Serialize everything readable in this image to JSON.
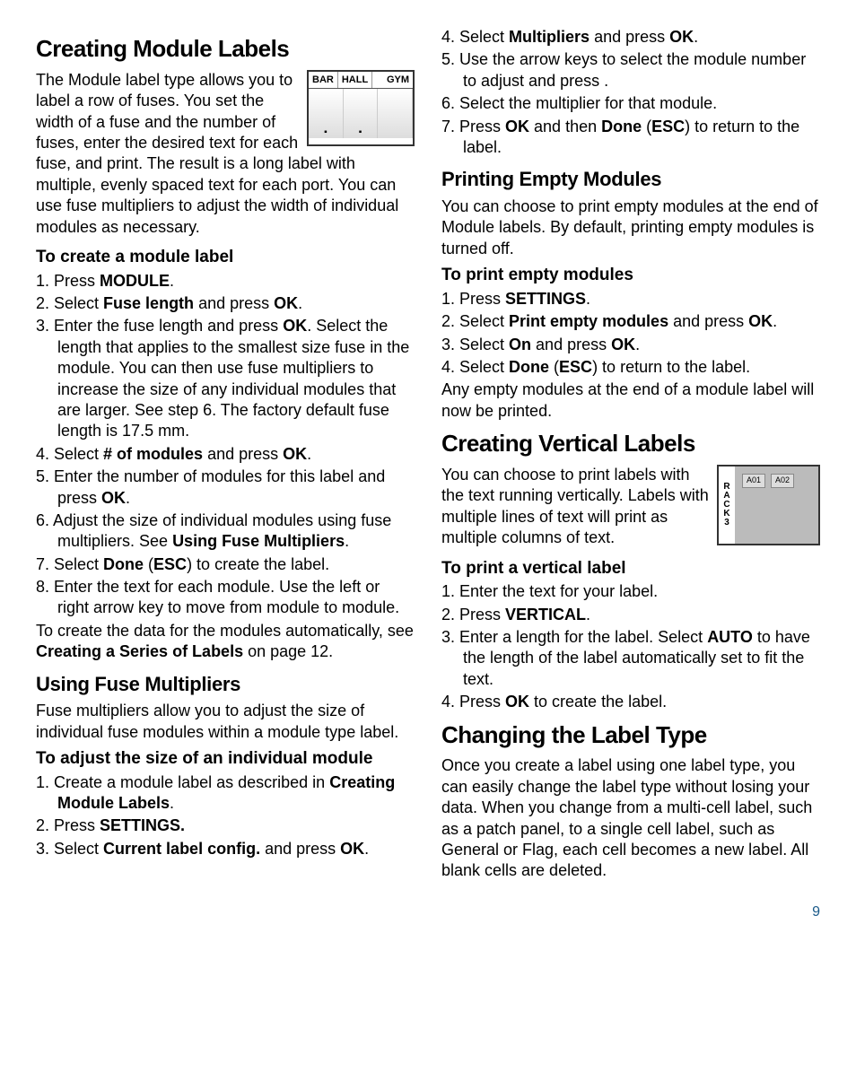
{
  "left": {
    "h_creating_module": "Creating Module Labels",
    "intro_module": "The Module label type allows you to label a row of fuses. You set the width of a fuse and the number of fuses, enter the desired text for each fuse, and print. The result is a long label with multiple, evenly spaced text for each port. You can use fuse multipliers to adjust the width of individual modules as necessary.",
    "h_to_create_module": "To create a module label",
    "module_steps": {
      "s1a": "1. Press ",
      "s1b": "MODULE",
      "s1c": ".",
      "s2a": "2. Select ",
      "s2b": "Fuse length",
      "s2c": " and press ",
      "s2d": "OK",
      "s2e": ".",
      "s3a": "3. Enter the fuse length and press ",
      "s3b": "OK",
      "s3c": ". Select the length that applies to the smallest size fuse in the module. You can then use fuse multipliers to increase the size of any individual modules that are larger. See step 6. The factory default fuse length is 17.5 mm.",
      "s4a": "4. Select ",
      "s4b": "# of modules",
      "s4c": " and press ",
      "s4d": "OK",
      "s4e": ".",
      "s5a": "5. Enter the number of modules for this label and press ",
      "s5b": "OK",
      "s5c": ".",
      "s6a": "6. Adjust the size of individual modules using fuse multipliers. See ",
      "s6b": "Using Fuse Multipliers",
      "s6c": ".",
      "s7a": "7. Select ",
      "s7b": "Done",
      "s7c": " (",
      "s7d": "ESC",
      "s7e": ") to create the label.",
      "s8": "8. Enter the text for each module. Use the left or right arrow key to move from module to module."
    },
    "module_auto1": "To create the data for the modules automatically, see ",
    "module_auto2": "Creating a Series of Labels",
    "module_auto3": " on page 12.",
    "h_fuse_mult": "Using Fuse Multipliers",
    "fuse_mult_intro": "Fuse multipliers allow you to adjust the size of individual fuse modules within a module type label.",
    "h_adjust_size": "To adjust the size of an individual module",
    "adjust_steps": {
      "s1a": "1. Create a module label as described in ",
      "s1b": "Creating Module Labels",
      "s1c": ".",
      "s2a": "2. Press ",
      "s2b": "SETTINGS.",
      "s3a": "3. Select ",
      "s3b": "Current label config.",
      "s3c": " and press ",
      "s3d": "OK",
      "s3e": "."
    },
    "fig_module": {
      "h1": "BAR",
      "h2": "HALL",
      "h3": "GYM"
    }
  },
  "right": {
    "mult_steps": {
      "s4a": "4. Select ",
      "s4b": "Multipliers",
      "s4c": " and press ",
      "s4d": "OK",
      "s4e": ".",
      "s5": "5. Use the arrow keys to select the module number to adjust and press     .",
      "s6": "6. Select the multiplier for that module.",
      "s7a": "7. Press ",
      "s7b": "OK",
      "s7c": " and then ",
      "s7d": "Done",
      "s7e": " (",
      "s7f": "ESC",
      "s7g": ") to return to the label."
    },
    "h_empty": "Printing Empty Modules",
    "empty_intro": "You can choose to print empty modules at the end of Module labels. By default, printing empty modules is turned off.",
    "h_to_empty": "To print empty modules",
    "empty_steps": {
      "s1a": "1. Press ",
      "s1b": "SETTINGS",
      "s1c": ".",
      "s2a": "2. Select ",
      "s2b": "Print empty modules",
      "s2c": " and press ",
      "s2d": "OK",
      "s2e": ".",
      "s3a": "3. Select ",
      "s3b": "On",
      "s3c": " and press ",
      "s3d": "OK",
      "s3e": ".",
      "s4a": "4. Select ",
      "s4b": "Done",
      "s4c": " (",
      "s4d": "ESC",
      "s4e": ") to return to the label."
    },
    "empty_out": "Any empty modules at the end of a module label will now be printed.",
    "h_vertical": "Creating Vertical Labels",
    "vertical_intro": "You can choose to print labels with the text running vertically. Labels with multiple lines of text will print as multiple columns of text.",
    "h_to_vertical": "To print a vertical label",
    "vert_steps": {
      "s1": "1. Enter the text for your label.",
      "s2a": "2. Press ",
      "s2b": "VERTICAL",
      "s2c": ".",
      "s3a": "3. Enter a length for the label. Select ",
      "s3b": "AUTO",
      "s3c": " to have the length of the label automatically set to fit the text.",
      "s4a": "4. Press ",
      "s4b": "OK",
      "s4c": " to create the label."
    },
    "h_changing": "Changing the Label Type",
    "changing_intro": "Once you create a label using one label type, you can easily change the label type without losing your data. When you change from a multi-cell label, such as a patch panel, to a single cell label, such as General or Flag, each cell becomes a new label. All blank cells are deleted.",
    "fig_vertical": {
      "side": [
        "R",
        "A",
        "C",
        "K",
        "3"
      ],
      "l1": "A01",
      "l2": "A02"
    }
  },
  "pagenum": "9"
}
